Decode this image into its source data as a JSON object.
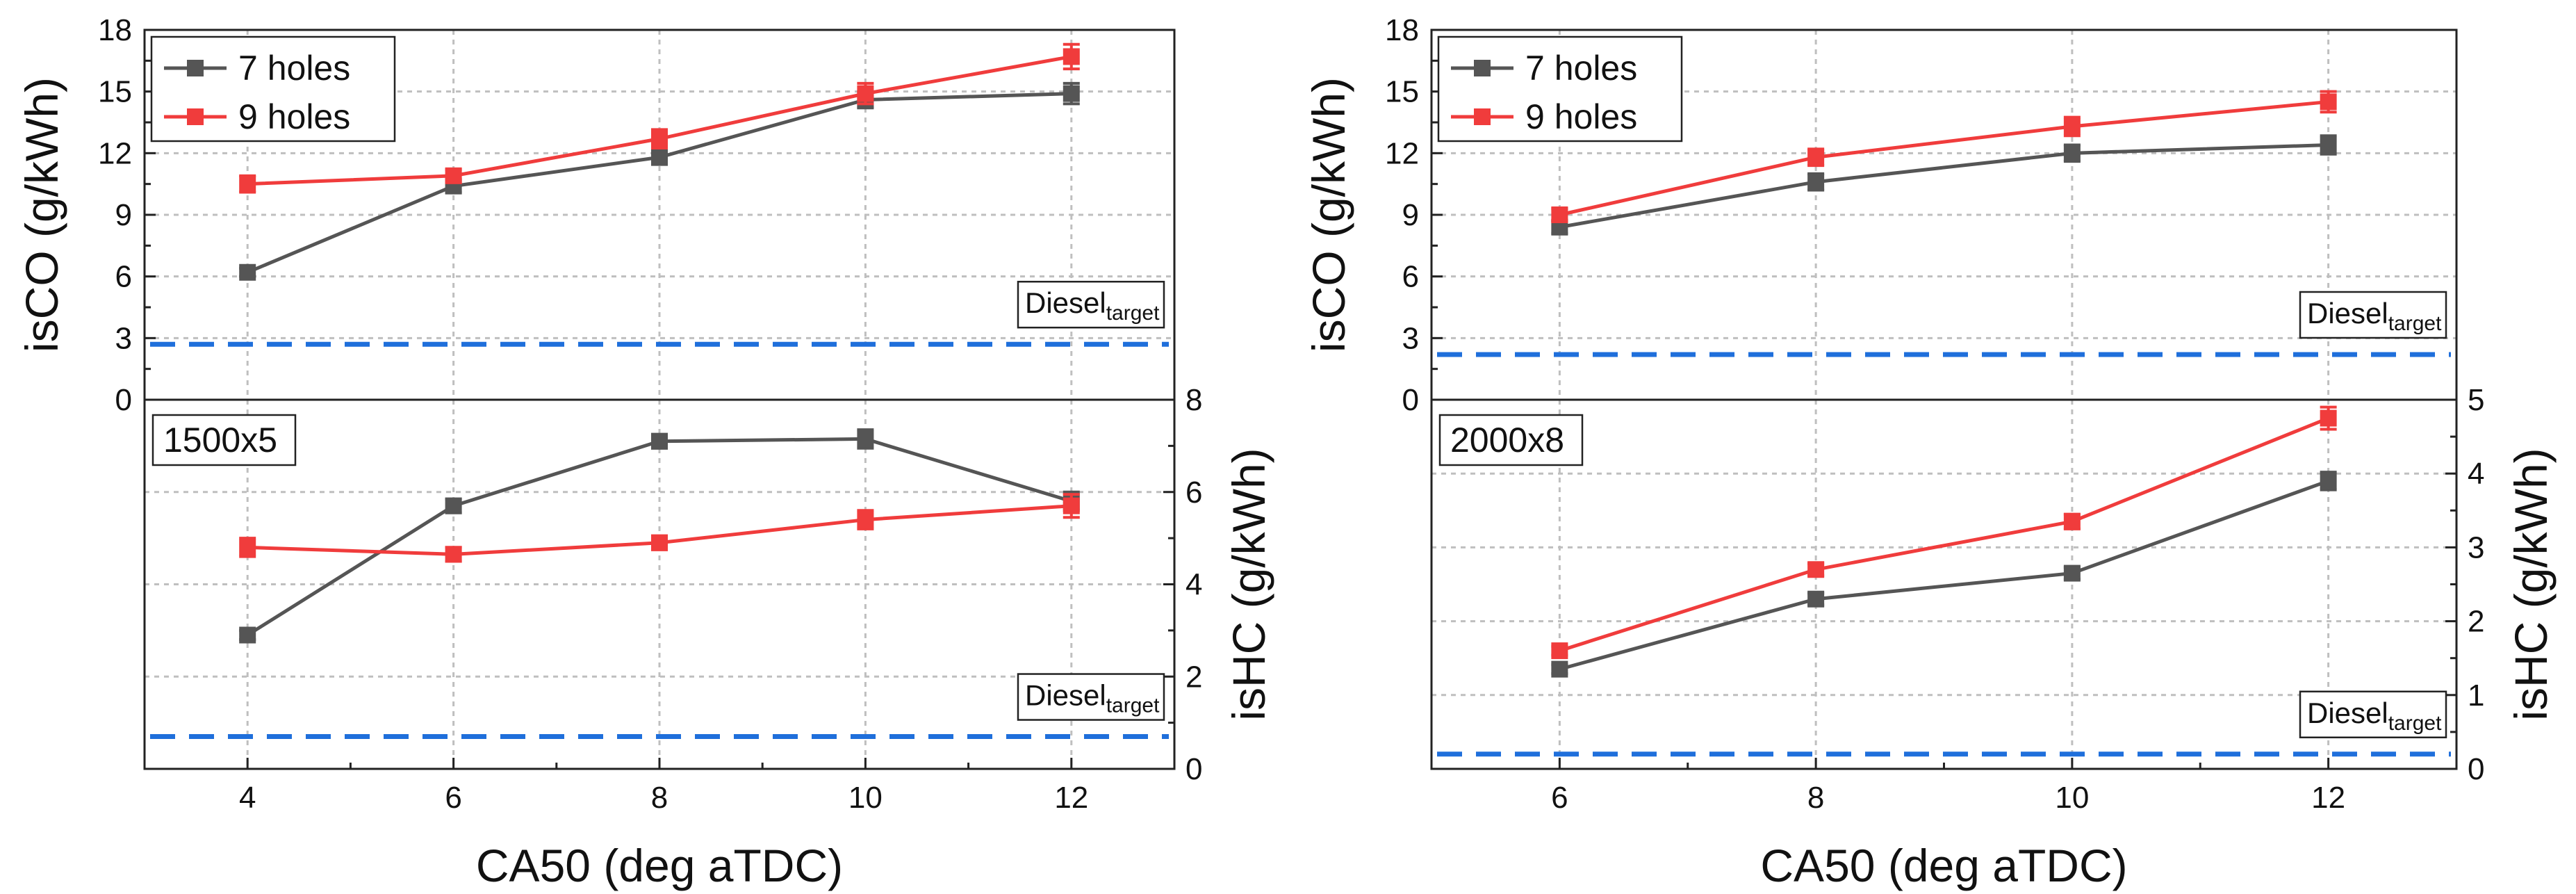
{
  "chart_data": [
    {
      "type": "line",
      "panel": "left-top",
      "ylabel": "isCO (g/kWh)",
      "ylim": [
        0,
        18
      ],
      "yticks": [
        0,
        3,
        6,
        9,
        12,
        15,
        18
      ],
      "x": [
        4,
        6,
        8,
        10,
        12
      ],
      "xlim": [
        3,
        13
      ],
      "series": [
        {
          "name": "7 holes",
          "color": "#555555",
          "values": [
            6.2,
            10.4,
            11.8,
            14.6,
            14.9
          ],
          "err": [
            0.2,
            0.3,
            0.35,
            0.4,
            0.5
          ]
        },
        {
          "name": "9 holes",
          "color": "#f03c3c",
          "values": [
            10.5,
            10.9,
            12.7,
            14.9,
            16.7
          ],
          "err": [
            0.4,
            0.3,
            0.45,
            0.5,
            0.6
          ]
        }
      ],
      "target": {
        "value": 2.7,
        "label_main": "Diesel",
        "label_sub": "target",
        "color": "#1f6fdb"
      },
      "legend": "top-left",
      "grid": true
    },
    {
      "type": "line",
      "panel": "left-bottom",
      "ylabel": "isHC (g/kWh)",
      "ylim": [
        0,
        8
      ],
      "yticks": [
        0,
        2,
        4,
        6,
        8
      ],
      "x": [
        4,
        6,
        8,
        10,
        12
      ],
      "xlim": [
        3,
        13
      ],
      "xticks": [
        4,
        6,
        8,
        10,
        12
      ],
      "xlabel": "CA50 (deg aTDC)",
      "series": [
        {
          "name": "7 holes",
          "color": "#555555",
          "values": [
            2.9,
            5.7,
            7.1,
            7.15,
            5.8
          ],
          "err": [
            0.1,
            0.15,
            0.15,
            0.2,
            0.2
          ]
        },
        {
          "name": "9 holes",
          "color": "#f03c3c",
          "values": [
            4.8,
            4.65,
            4.9,
            5.4,
            5.7
          ],
          "err": [
            0.2,
            0.15,
            0.15,
            0.2,
            0.25
          ]
        }
      ],
      "target": {
        "value": 0.7,
        "label_main": "Diesel",
        "label_sub": "target",
        "color": "#1f6fdb"
      },
      "condition_label": "1500x5",
      "grid": true
    },
    {
      "type": "line",
      "panel": "right-top",
      "ylabel": "isCO (g/kWh)",
      "ylim": [
        0,
        18
      ],
      "yticks": [
        0,
        3,
        6,
        9,
        12,
        15,
        18
      ],
      "x": [
        6,
        8,
        10,
        12
      ],
      "xlim": [
        5,
        13
      ],
      "series": [
        {
          "name": "7 holes",
          "color": "#555555",
          "values": [
            8.4,
            10.6,
            12.0,
            12.4
          ],
          "err": [
            0.3,
            0.4,
            0.4,
            0.45
          ]
        },
        {
          "name": "9 holes",
          "color": "#f03c3c",
          "values": [
            9.0,
            11.8,
            13.3,
            14.5
          ],
          "err": [
            0.3,
            0.4,
            0.45,
            0.5
          ]
        }
      ],
      "target": {
        "value": 2.2,
        "label_main": "Diesel",
        "label_sub": "target",
        "color": "#1f6fdb"
      },
      "legend": "top-left",
      "grid": true
    },
    {
      "type": "line",
      "panel": "right-bottom",
      "ylabel": "isHC (g/kWh)",
      "ylim": [
        0,
        5
      ],
      "yticks": [
        0,
        1,
        2,
        3,
        4,
        5
      ],
      "x": [
        6,
        8,
        10,
        12
      ],
      "xlim": [
        5,
        13
      ],
      "xticks": [
        6,
        8,
        10,
        12
      ],
      "xlabel": "CA50 (deg aTDC)",
      "series": [
        {
          "name": "7 holes",
          "color": "#555555",
          "values": [
            1.35,
            2.3,
            2.65,
            3.9
          ],
          "err": [
            0.06,
            0.08,
            0.08,
            0.12
          ]
        },
        {
          "name": "9 holes",
          "color": "#f03c3c",
          "values": [
            1.6,
            2.7,
            3.35,
            4.75
          ],
          "err": [
            0.06,
            0.08,
            0.1,
            0.15
          ]
        }
      ],
      "target": {
        "value": 0.2,
        "label_main": "Diesel",
        "label_sub": "target",
        "color": "#1f6fdb"
      },
      "condition_label": "2000x8",
      "grid": true
    }
  ]
}
